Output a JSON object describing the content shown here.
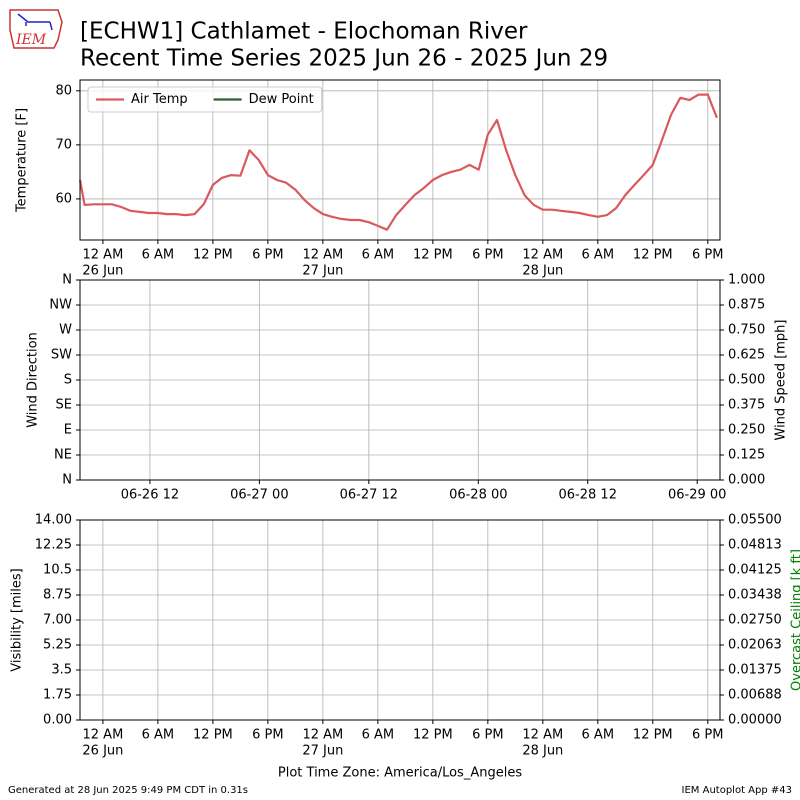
{
  "title_lines": [
    "[ECHW1] Cathlamet - Elochoman River",
    "Recent Time Series 2025 Jun 26 - 2025 Jun 29"
  ],
  "logo_text": "IEM",
  "footer_left": "Generated at 28 Jun 2025 9:49 PM CDT in 0.31s",
  "footer_right": "IEM Autoplot App #43",
  "chart_data": [
    {
      "type": "line",
      "ylabel": "Temperature [F]",
      "grid": true,
      "legend": "upper left",
      "xlim": [
        "2025-06-25T21:30",
        "2025-06-28T19:20"
      ],
      "ylim": [
        52.4,
        82.0
      ],
      "yticks": [
        60,
        70,
        80
      ],
      "xticks": [
        {
          "value": "2025-06-26T00:00",
          "label": [
            "12 AM",
            "26 Jun"
          ]
        },
        {
          "value": "2025-06-26T06:00",
          "label": "6 AM"
        },
        {
          "value": "2025-06-26T12:00",
          "label": "12 PM"
        },
        {
          "value": "2025-06-26T18:00",
          "label": "6 PM"
        },
        {
          "value": "2025-06-27T00:00",
          "label": [
            "12 AM",
            "27 Jun"
          ]
        },
        {
          "value": "2025-06-27T06:00",
          "label": "6 AM"
        },
        {
          "value": "2025-06-27T12:00",
          "label": "12 PM"
        },
        {
          "value": "2025-06-27T18:00",
          "label": "6 PM"
        },
        {
          "value": "2025-06-28T00:00",
          "label": [
            "12 AM",
            "28 Jun"
          ]
        },
        {
          "value": "2025-06-28T06:00",
          "label": "6 AM"
        },
        {
          "value": "2025-06-28T12:00",
          "label": "12 PM"
        },
        {
          "value": "2025-06-28T18:00",
          "label": "6 PM"
        }
      ],
      "x": [
        "2025-06-25T21:30",
        "2025-06-25T22:00",
        "2025-06-25T23:00",
        "2025-06-26T00:00",
        "2025-06-26T01:00",
        "2025-06-26T02:00",
        "2025-06-26T03:00",
        "2025-06-26T04:00",
        "2025-06-26T05:00",
        "2025-06-26T06:00",
        "2025-06-26T07:00",
        "2025-06-26T08:00",
        "2025-06-26T09:00",
        "2025-06-26T10:00",
        "2025-06-26T11:00",
        "2025-06-26T12:00",
        "2025-06-26T13:00",
        "2025-06-26T14:00",
        "2025-06-26T15:00",
        "2025-06-26T16:00",
        "2025-06-26T17:00",
        "2025-06-26T18:00",
        "2025-06-26T19:00",
        "2025-06-26T20:00",
        "2025-06-26T21:00",
        "2025-06-26T22:00",
        "2025-06-26T23:00",
        "2025-06-27T00:00",
        "2025-06-27T01:00",
        "2025-06-27T02:00",
        "2025-06-27T03:00",
        "2025-06-27T04:00",
        "2025-06-27T05:00",
        "2025-06-27T06:00",
        "2025-06-27T07:00",
        "2025-06-27T08:00",
        "2025-06-27T09:00",
        "2025-06-27T10:00",
        "2025-06-27T11:00",
        "2025-06-27T12:00",
        "2025-06-27T13:00",
        "2025-06-27T14:00",
        "2025-06-27T15:00",
        "2025-06-27T16:00",
        "2025-06-27T17:00",
        "2025-06-27T18:00",
        "2025-06-27T19:00",
        "2025-06-27T20:00",
        "2025-06-27T21:00",
        "2025-06-27T22:00",
        "2025-06-27T23:00",
        "2025-06-28T00:00",
        "2025-06-28T01:00",
        "2025-06-28T02:00",
        "2025-06-28T03:00",
        "2025-06-28T04:00",
        "2025-06-28T05:00",
        "2025-06-28T06:00",
        "2025-06-28T07:00",
        "2025-06-28T08:00",
        "2025-06-28T09:00",
        "2025-06-28T10:00",
        "2025-06-28T11:00",
        "2025-06-28T12:00",
        "2025-06-28T13:00",
        "2025-06-28T14:00",
        "2025-06-28T15:00",
        "2025-06-28T16:00",
        "2025-06-28T17:00",
        "2025-06-28T18:00",
        "2025-06-28T19:00"
      ],
      "series": [
        {
          "name": "Air Temp",
          "color": "#d9595f",
          "values": [
            63.5,
            58.9,
            59,
            59,
            59,
            58.5,
            57.8,
            57.6,
            57.4,
            57.4,
            57.2,
            57.2,
            57,
            57.2,
            59,
            62.6,
            63.9,
            64.4,
            64.3,
            69,
            67.2,
            64.4,
            63.5,
            63,
            61.7,
            59.8,
            58.3,
            57.2,
            56.7,
            56.3,
            56.1,
            56.1,
            55.7,
            55,
            54.3,
            57,
            58.9,
            60.7,
            62,
            63.5,
            64.4,
            65,
            65.4,
            66.3,
            65.4,
            71.9,
            74.6,
            69,
            64.4,
            60.7,
            58.9,
            58,
            58,
            57.8,
            57.6,
            57.4,
            57,
            56.7,
            57,
            58.3,
            60.7,
            62.6,
            64.4,
            66.3,
            70.9,
            75.6,
            78.7,
            78.3,
            79.3,
            79.3,
            75
          ]
        },
        {
          "name": "Dew Point",
          "color": "#2e5e2e",
          "values": [
            null,
            null,
            null,
            null,
            null,
            null,
            null,
            null,
            null,
            null,
            null,
            null,
            null,
            null,
            null,
            null,
            null,
            null,
            null,
            null,
            null,
            null,
            null,
            null,
            null,
            null,
            null,
            null,
            null,
            null,
            null,
            null,
            null,
            null,
            null,
            null,
            null,
            null,
            null,
            null,
            null,
            null,
            null,
            null,
            null,
            null,
            null,
            null,
            null,
            null,
            null,
            null,
            null,
            null,
            null,
            null,
            null,
            null,
            null,
            null,
            null,
            null,
            null,
            null,
            null,
            null,
            null,
            null,
            null,
            null,
            null
          ]
        }
      ]
    },
    {
      "type": "line",
      "ylabel": "Wind Direction",
      "y2label": "Wind Speed [mph]",
      "grid": true,
      "xlim": [
        "2025-06-26T04:20",
        "2025-06-29T02:30"
      ],
      "xticks": [
        {
          "value": "2025-06-26T12:00",
          "label": "06-26 12"
        },
        {
          "value": "2025-06-27T00:00",
          "label": "06-27 00"
        },
        {
          "value": "2025-06-27T12:00",
          "label": "06-27 12"
        },
        {
          "value": "2025-06-28T00:00",
          "label": "06-28 00"
        },
        {
          "value": "2025-06-28T12:00",
          "label": "06-28 12"
        },
        {
          "value": "2025-06-29T00:00",
          "label": "06-29 00"
        }
      ],
      "ylim": [
        0,
        360
      ],
      "yticks": [
        {
          "value": 0,
          "label": "N"
        },
        {
          "value": 45,
          "label": "NE"
        },
        {
          "value": 90,
          "label": "E"
        },
        {
          "value": 135,
          "label": "SE"
        },
        {
          "value": 180,
          "label": "S"
        },
        {
          "value": 225,
          "label": "SW"
        },
        {
          "value": 270,
          "label": "W"
        },
        {
          "value": 315,
          "label": "NW"
        },
        {
          "value": 360,
          "label": "N"
        }
      ],
      "y2lim": [
        0,
        1
      ],
      "y2ticks": [
        {
          "value": 0,
          "label": "0.000"
        },
        {
          "value": 0.125,
          "label": "0.125"
        },
        {
          "value": 0.25,
          "label": "0.250"
        },
        {
          "value": 0.375,
          "label": "0.375"
        },
        {
          "value": 0.5,
          "label": "0.500"
        },
        {
          "value": 0.625,
          "label": "0.625"
        },
        {
          "value": 0.75,
          "label": "0.750"
        },
        {
          "value": 0.875,
          "label": "0.875"
        },
        {
          "value": 1,
          "label": "1.000"
        }
      ]
    },
    {
      "type": "line",
      "ylabel": "Visibility [miles]",
      "y2label": "Overcast Ceiling [k ft]",
      "y2label_color": "green",
      "grid": true,
      "xlabel": "Plot Time Zone: America/Los_Angeles",
      "xlim": [
        "2025-06-25T21:30",
        "2025-06-28T19:20"
      ],
      "xticks": [
        {
          "value": "2025-06-26T00:00",
          "label": [
            "12 AM",
            "26 Jun"
          ]
        },
        {
          "value": "2025-06-26T06:00",
          "label": "6 AM"
        },
        {
          "value": "2025-06-26T12:00",
          "label": "12 PM"
        },
        {
          "value": "2025-06-26T18:00",
          "label": "6 PM"
        },
        {
          "value": "2025-06-27T00:00",
          "label": [
            "12 AM",
            "27 Jun"
          ]
        },
        {
          "value": "2025-06-27T06:00",
          "label": "6 AM"
        },
        {
          "value": "2025-06-27T12:00",
          "label": "12 PM"
        },
        {
          "value": "2025-06-27T18:00",
          "label": "6 PM"
        },
        {
          "value": "2025-06-28T00:00",
          "label": [
            "12 AM",
            "28 Jun"
          ]
        },
        {
          "value": "2025-06-28T06:00",
          "label": "6 AM"
        },
        {
          "value": "2025-06-28T12:00",
          "label": "12 PM"
        },
        {
          "value": "2025-06-28T18:00",
          "label": "6 PM"
        }
      ],
      "ylim": [
        0,
        14
      ],
      "yticks": [
        {
          "value": 0,
          "label": "0.00"
        },
        1.75,
        3.5,
        5.25,
        {
          "value": 7,
          "label": "7.00"
        },
        8.75,
        10.5,
        12.25,
        {
          "value": 14,
          "label": "14.00"
        }
      ],
      "y2lim": [
        0,
        0.055
      ],
      "y2ticks": [
        {
          "value": 0,
          "label": "0.00000"
        },
        {
          "value": 0.006875,
          "label": "0.00688"
        },
        {
          "value": 0.01375,
          "label": "0.01375"
        },
        {
          "value": 0.020625,
          "label": "0.02063"
        },
        {
          "value": 0.0275,
          "label": "0.02750"
        },
        {
          "value": 0.034375,
          "label": "0.03438"
        },
        {
          "value": 0.04125,
          "label": "0.04125"
        },
        {
          "value": 0.048125,
          "label": "0.04813"
        },
        {
          "value": 0.055,
          "label": "0.05500"
        }
      ]
    }
  ]
}
